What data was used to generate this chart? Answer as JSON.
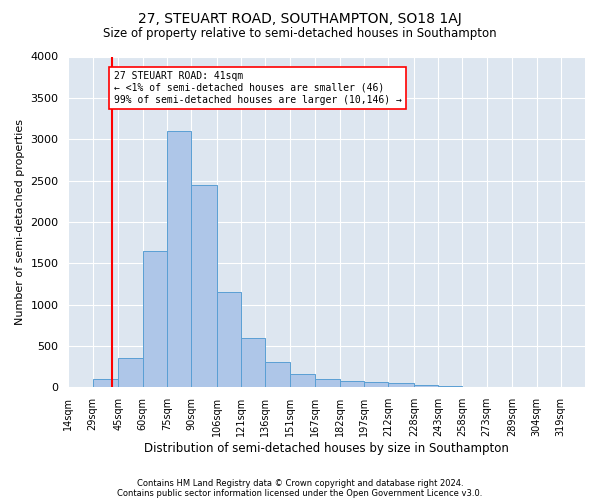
{
  "title": "27, STEUART ROAD, SOUTHAMPTON, SO18 1AJ",
  "subtitle": "Size of property relative to semi-detached houses in Southampton",
  "xlabel": "Distribution of semi-detached houses by size in Southampton",
  "ylabel": "Number of semi-detached properties",
  "footnote1": "Contains HM Land Registry data © Crown copyright and database right 2024.",
  "footnote2": "Contains public sector information licensed under the Open Government Licence v3.0.",
  "annotation_line1": "27 STEUART ROAD: 41sqm",
  "annotation_line2": "← <1% of semi-detached houses are smaller (46)",
  "annotation_line3": "99% of semi-detached houses are larger (10,146) →",
  "bar_color": "#aec6e8",
  "bar_edge_color": "#5a9fd4",
  "figure_bg_color": "#ffffff",
  "plot_bg_color": "#dde6f0",
  "red_line_x": 41,
  "categories": [
    "14sqm",
    "29sqm",
    "45sqm",
    "60sqm",
    "75sqm",
    "90sqm",
    "106sqm",
    "121sqm",
    "136sqm",
    "151sqm",
    "167sqm",
    "182sqm",
    "197sqm",
    "212sqm",
    "228sqm",
    "243sqm",
    "258sqm",
    "273sqm",
    "289sqm",
    "304sqm",
    "319sqm"
  ],
  "bin_edges": [
    14,
    29,
    45,
    60,
    75,
    90,
    106,
    121,
    136,
    151,
    167,
    182,
    197,
    212,
    228,
    243,
    258,
    273,
    289,
    304,
    319,
    334
  ],
  "values": [
    0,
    100,
    350,
    1650,
    3100,
    2450,
    1150,
    600,
    310,
    160,
    100,
    75,
    65,
    50,
    30,
    20,
    10,
    5,
    5,
    3,
    2
  ],
  "ylim": [
    0,
    4000
  ],
  "yticks": [
    0,
    500,
    1000,
    1500,
    2000,
    2500,
    3000,
    3500,
    4000
  ]
}
